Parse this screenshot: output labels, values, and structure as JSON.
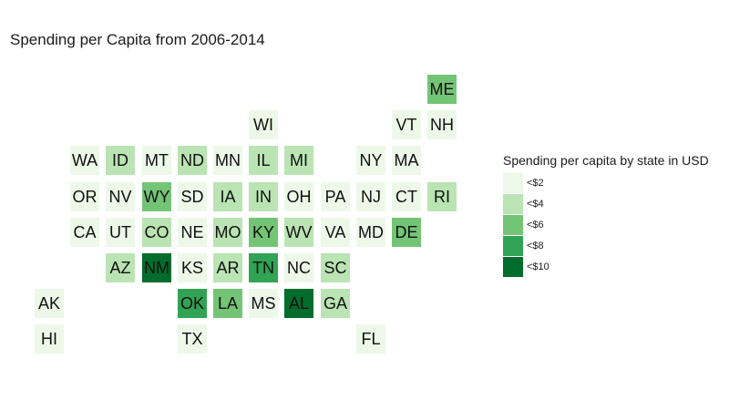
{
  "title": "Spending per Capita from 2006-2014",
  "legend": {
    "title": "Spending per capita by state in USD",
    "placement": "right",
    "bins": [
      {
        "label": "<$2",
        "color": "#edf8e9"
      },
      {
        "label": "<$4",
        "color": "#bae4b3"
      },
      {
        "label": "<$6",
        "color": "#74c476"
      },
      {
        "label": "<$8",
        "color": "#31a354"
      },
      {
        "label": "<$10",
        "color": "#006d2c"
      }
    ]
  },
  "states": [
    {
      "abbr": "ME",
      "row": 0,
      "col": 11,
      "bin": 2
    },
    {
      "abbr": "WI",
      "row": 1,
      "col": 6,
      "bin": 0
    },
    {
      "abbr": "VT",
      "row": 1,
      "col": 10,
      "bin": 0
    },
    {
      "abbr": "NH",
      "row": 1,
      "col": 11,
      "bin": 0
    },
    {
      "abbr": "WA",
      "row": 2,
      "col": 1,
      "bin": 0
    },
    {
      "abbr": "ID",
      "row": 2,
      "col": 2,
      "bin": 1
    },
    {
      "abbr": "MT",
      "row": 2,
      "col": 3,
      "bin": 0
    },
    {
      "abbr": "ND",
      "row": 2,
      "col": 4,
      "bin": 1
    },
    {
      "abbr": "MN",
      "row": 2,
      "col": 5,
      "bin": 0
    },
    {
      "abbr": "IL",
      "row": 2,
      "col": 6,
      "bin": 1
    },
    {
      "abbr": "MI",
      "row": 2,
      "col": 7,
      "bin": 1
    },
    {
      "abbr": "NY",
      "row": 2,
      "col": 9,
      "bin": 0
    },
    {
      "abbr": "MA",
      "row": 2,
      "col": 10,
      "bin": 0
    },
    {
      "abbr": "OR",
      "row": 3,
      "col": 1,
      "bin": 0
    },
    {
      "abbr": "NV",
      "row": 3,
      "col": 2,
      "bin": 0
    },
    {
      "abbr": "WY",
      "row": 3,
      "col": 3,
      "bin": 2
    },
    {
      "abbr": "SD",
      "row": 3,
      "col": 4,
      "bin": 0
    },
    {
      "abbr": "IA",
      "row": 3,
      "col": 5,
      "bin": 1
    },
    {
      "abbr": "IN",
      "row": 3,
      "col": 6,
      "bin": 1
    },
    {
      "abbr": "OH",
      "row": 3,
      "col": 7,
      "bin": 0
    },
    {
      "abbr": "PA",
      "row": 3,
      "col": 8,
      "bin": 0
    },
    {
      "abbr": "NJ",
      "row": 3,
      "col": 9,
      "bin": 0
    },
    {
      "abbr": "CT",
      "row": 3,
      "col": 10,
      "bin": 0
    },
    {
      "abbr": "RI",
      "row": 3,
      "col": 11,
      "bin": 1
    },
    {
      "abbr": "CA",
      "row": 4,
      "col": 1,
      "bin": 0
    },
    {
      "abbr": "UT",
      "row": 4,
      "col": 2,
      "bin": 0
    },
    {
      "abbr": "CO",
      "row": 4,
      "col": 3,
      "bin": 1
    },
    {
      "abbr": "NE",
      "row": 4,
      "col": 4,
      "bin": 0
    },
    {
      "abbr": "MO",
      "row": 4,
      "col": 5,
      "bin": 1
    },
    {
      "abbr": "KY",
      "row": 4,
      "col": 6,
      "bin": 2
    },
    {
      "abbr": "WV",
      "row": 4,
      "col": 7,
      "bin": 1
    },
    {
      "abbr": "VA",
      "row": 4,
      "col": 8,
      "bin": 0
    },
    {
      "abbr": "MD",
      "row": 4,
      "col": 9,
      "bin": 0
    },
    {
      "abbr": "DE",
      "row": 4,
      "col": 10,
      "bin": 2
    },
    {
      "abbr": "AZ",
      "row": 5,
      "col": 2,
      "bin": 1
    },
    {
      "abbr": "NM",
      "row": 5,
      "col": 3,
      "bin": 4
    },
    {
      "abbr": "KS",
      "row": 5,
      "col": 4,
      "bin": 0
    },
    {
      "abbr": "AR",
      "row": 5,
      "col": 5,
      "bin": 1
    },
    {
      "abbr": "TN",
      "row": 5,
      "col": 6,
      "bin": 3
    },
    {
      "abbr": "NC",
      "row": 5,
      "col": 7,
      "bin": 0
    },
    {
      "abbr": "SC",
      "row": 5,
      "col": 8,
      "bin": 1
    },
    {
      "abbr": "AK",
      "row": 6,
      "col": 0,
      "bin": 0
    },
    {
      "abbr": "OK",
      "row": 6,
      "col": 4,
      "bin": 3
    },
    {
      "abbr": "LA",
      "row": 6,
      "col": 5,
      "bin": 2
    },
    {
      "abbr": "MS",
      "row": 6,
      "col": 6,
      "bin": 0
    },
    {
      "abbr": "AL",
      "row": 6,
      "col": 7,
      "bin": 4
    },
    {
      "abbr": "GA",
      "row": 6,
      "col": 8,
      "bin": 1
    },
    {
      "abbr": "HI",
      "row": 7,
      "col": 0,
      "bin": 0
    },
    {
      "abbr": "TX",
      "row": 7,
      "col": 4,
      "bin": 0
    },
    {
      "abbr": "FL",
      "row": 7,
      "col": 9,
      "bin": 0
    }
  ]
}
